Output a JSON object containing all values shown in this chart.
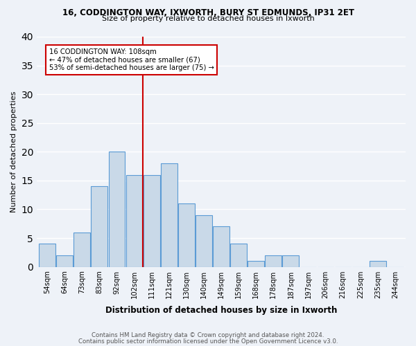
{
  "title1": "16, CODDINGTON WAY, IXWORTH, BURY ST EDMUNDS, IP31 2ET",
  "title2": "Size of property relative to detached houses in Ixworth",
  "xlabel": "Distribution of detached houses by size in Ixworth",
  "ylabel": "Number of detached properties",
  "bin_labels": [
    "54sqm",
    "64sqm",
    "73sqm",
    "83sqm",
    "92sqm",
    "102sqm",
    "111sqm",
    "121sqm",
    "130sqm",
    "140sqm",
    "149sqm",
    "159sqm",
    "168sqm",
    "178sqm",
    "187sqm",
    "197sqm",
    "206sqm",
    "216sqm",
    "225sqm",
    "235sqm",
    "244sqm"
  ],
  "bar_heights": [
    4,
    2,
    6,
    14,
    20,
    16,
    16,
    18,
    11,
    9,
    7,
    4,
    1,
    2,
    2,
    0,
    0,
    0,
    0,
    1,
    0
  ],
  "bar_color": "#c9d9e8",
  "bar_edge_color": "#5b9bd5",
  "property_line_idx": 5.5,
  "annotation_text": "16 CODDINGTON WAY: 108sqm\n← 47% of detached houses are smaller (67)\n53% of semi-detached houses are larger (75) →",
  "annotation_box_color": "#ffffff",
  "annotation_box_edge": "#cc0000",
  "vline_color": "#cc0000",
  "footer1": "Contains HM Land Registry data © Crown copyright and database right 2024.",
  "footer2": "Contains public sector information licensed under the Open Government Licence v3.0.",
  "ylim": [
    0,
    40
  ],
  "background_color": "#eef2f8"
}
